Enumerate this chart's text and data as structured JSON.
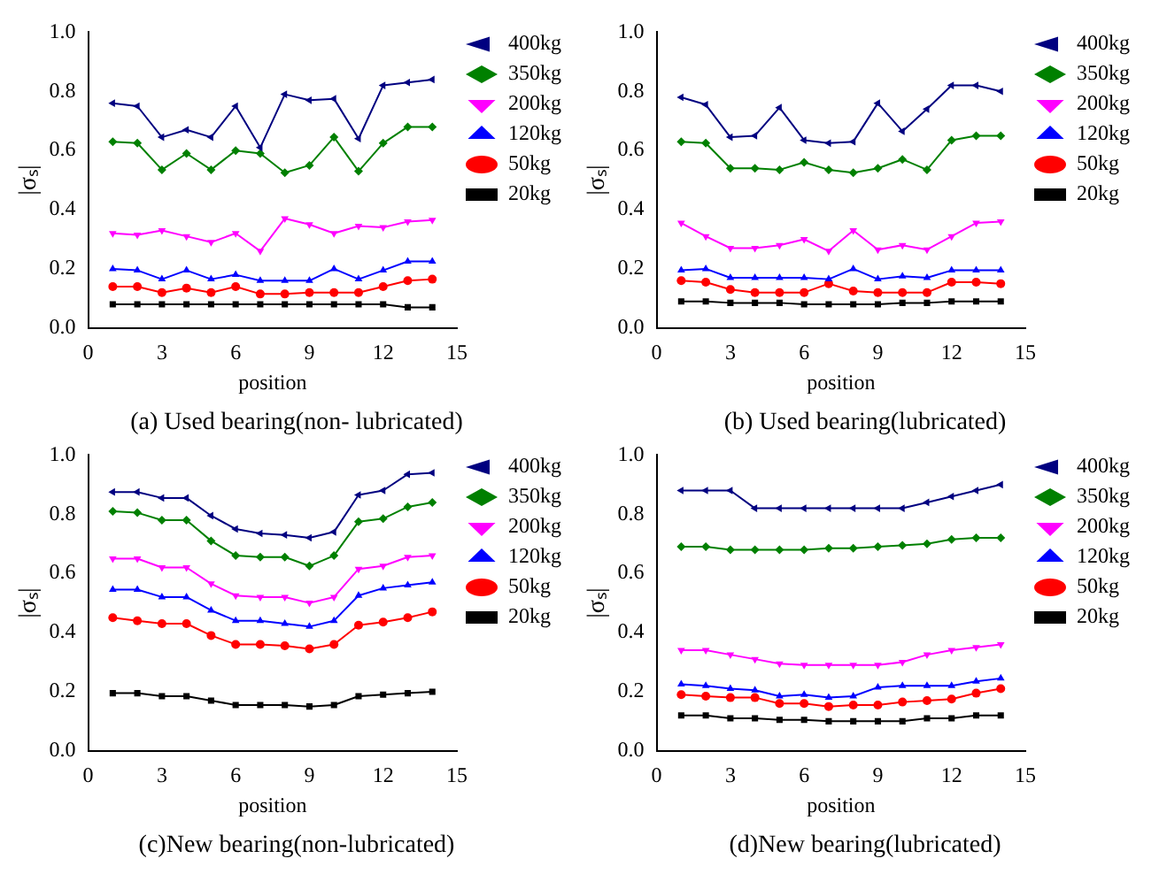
{
  "chart_data": [
    {
      "type": "line",
      "title": "(a) Used bearing(non- lubricated)",
      "xlabel": "position",
      "ylabel": "|σₛ|",
      "x": [
        1,
        2,
        3,
        4,
        5,
        6,
        7,
        8,
        9,
        10,
        11,
        12,
        13,
        14
      ],
      "xlim": [
        0,
        15
      ],
      "xticks": [
        0,
        3,
        6,
        9,
        12,
        15
      ],
      "ylim": [
        0,
        1
      ],
      "yticks": [
        {
          "value": 0,
          "label": "0.0"
        },
        {
          "value": 0.2,
          "label": "0.2"
        },
        {
          "value": 0.4,
          "label": "0.4"
        },
        {
          "value": 0.6,
          "label": "0.6"
        },
        {
          "value": 0.8,
          "label": "0.8"
        },
        {
          "value": 1,
          "label": "1.0"
        }
      ],
      "grid": false,
      "legend": "top right",
      "line_style": "solid",
      "series": [
        {
          "name": "20kg",
          "color": "#000000",
          "marker": "square",
          "values": [
            0.08,
            0.08,
            0.08,
            0.08,
            0.08,
            0.08,
            0.08,
            0.08,
            0.08,
            0.08,
            0.08,
            0.08,
            0.07,
            0.07
          ]
        },
        {
          "name": "50kg",
          "color": "#ff0000",
          "marker": "circle",
          "values": [
            0.14,
            0.14,
            0.12,
            0.135,
            0.12,
            0.14,
            0.115,
            0.115,
            0.12,
            0.12,
            0.12,
            0.14,
            0.16,
            0.165
          ]
        },
        {
          "name": "120kg",
          "color": "#0000ff",
          "marker": "triangle",
          "values": [
            0.2,
            0.195,
            0.165,
            0.195,
            0.165,
            0.18,
            0.16,
            0.16,
            0.16,
            0.2,
            0.165,
            0.195,
            0.225,
            0.225
          ]
        },
        {
          "name": "200kg",
          "color": "#ff00ff",
          "marker": "triangle-down",
          "values": [
            0.32,
            0.315,
            0.33,
            0.31,
            0.29,
            0.32,
            0.26,
            0.37,
            0.35,
            0.32,
            0.345,
            0.34,
            0.36,
            0.365
          ]
        },
        {
          "name": "350kg",
          "color": "#008000",
          "marker": "diamond",
          "values": [
            0.63,
            0.625,
            0.535,
            0.59,
            0.535,
            0.6,
            0.59,
            0.525,
            0.55,
            0.645,
            0.53,
            0.625,
            0.68,
            0.68
          ]
        },
        {
          "name": "400kg",
          "color": "#000080",
          "marker": "triangle-left",
          "values": [
            0.76,
            0.75,
            0.645,
            0.67,
            0.645,
            0.75,
            0.61,
            0.79,
            0.77,
            0.775,
            0.64,
            0.82,
            0.83,
            0.84
          ]
        }
      ]
    },
    {
      "type": "line",
      "title": "(b) Used bearing(lubricated)",
      "xlabel": "position",
      "ylabel": "|σₛ|",
      "x": [
        1,
        2,
        3,
        4,
        5,
        6,
        7,
        8,
        9,
        10,
        11,
        12,
        13,
        14
      ],
      "xlim": [
        0,
        15
      ],
      "xticks": [
        0,
        3,
        6,
        9,
        12,
        15
      ],
      "ylim": [
        0,
        1
      ],
      "yticks": [
        {
          "value": 0,
          "label": "0.0"
        },
        {
          "value": 0.2,
          "label": "0.2"
        },
        {
          "value": 0.4,
          "label": "0.4"
        },
        {
          "value": 0.6,
          "label": "0.6"
        },
        {
          "value": 0.8,
          "label": "0.8"
        },
        {
          "value": 1,
          "label": "1.0"
        }
      ],
      "grid": false,
      "legend": "top right",
      "line_style": "solid",
      "series": [
        {
          "name": "20kg",
          "color": "#000000",
          "marker": "square",
          "values": [
            0.09,
            0.09,
            0.085,
            0.085,
            0.085,
            0.08,
            0.08,
            0.08,
            0.08,
            0.085,
            0.085,
            0.09,
            0.09,
            0.09
          ]
        },
        {
          "name": "50kg",
          "color": "#ff0000",
          "marker": "circle",
          "values": [
            0.16,
            0.155,
            0.13,
            0.12,
            0.12,
            0.12,
            0.15,
            0.125,
            0.12,
            0.12,
            0.12,
            0.155,
            0.155,
            0.15
          ]
        },
        {
          "name": "120kg",
          "color": "#0000ff",
          "marker": "triangle",
          "values": [
            0.195,
            0.2,
            0.17,
            0.17,
            0.17,
            0.17,
            0.165,
            0.2,
            0.165,
            0.175,
            0.17,
            0.195,
            0.195,
            0.195
          ]
        },
        {
          "name": "200kg",
          "color": "#ff00ff",
          "marker": "triangle-down",
          "values": [
            0.355,
            0.31,
            0.27,
            0.27,
            0.28,
            0.3,
            0.26,
            0.33,
            0.265,
            0.28,
            0.265,
            0.31,
            0.355,
            0.36
          ]
        },
        {
          "name": "350kg",
          "color": "#008000",
          "marker": "diamond",
          "values": [
            0.63,
            0.625,
            0.54,
            0.54,
            0.535,
            0.56,
            0.535,
            0.525,
            0.54,
            0.57,
            0.535,
            0.635,
            0.65,
            0.65
          ]
        },
        {
          "name": "400kg",
          "color": "#000080",
          "marker": "triangle-left",
          "values": [
            0.78,
            0.755,
            0.645,
            0.65,
            0.745,
            0.635,
            0.625,
            0.63,
            0.76,
            0.665,
            0.74,
            0.82,
            0.82,
            0.8
          ]
        }
      ]
    },
    {
      "type": "line",
      "title": "(c)New bearing(non-lubricated)",
      "xlabel": "position",
      "ylabel": "|σₛ|",
      "x": [
        1,
        2,
        3,
        4,
        5,
        6,
        7,
        8,
        9,
        10,
        11,
        12,
        13,
        14
      ],
      "xlim": [
        0,
        15
      ],
      "xticks": [
        0,
        3,
        6,
        9,
        12,
        15
      ],
      "ylim": [
        0,
        1
      ],
      "yticks": [
        {
          "value": 0,
          "label": "0.0"
        },
        {
          "value": 0.2,
          "label": "0.2"
        },
        {
          "value": 0.4,
          "label": "0.4"
        },
        {
          "value": 0.6,
          "label": "0.6"
        },
        {
          "value": 0.8,
          "label": "0.8"
        },
        {
          "value": 1,
          "label": "1.0"
        }
      ],
      "grid": false,
      "legend": "top right",
      "line_style": "solid",
      "series": [
        {
          "name": "20kg",
          "color": "#000000",
          "marker": "square",
          "values": [
            0.195,
            0.195,
            0.185,
            0.185,
            0.17,
            0.155,
            0.155,
            0.155,
            0.15,
            0.155,
            0.185,
            0.19,
            0.195,
            0.2
          ]
        },
        {
          "name": "50kg",
          "color": "#ff0000",
          "marker": "circle",
          "values": [
            0.45,
            0.44,
            0.43,
            0.43,
            0.39,
            0.36,
            0.36,
            0.355,
            0.345,
            0.36,
            0.425,
            0.435,
            0.45,
            0.47
          ]
        },
        {
          "name": "120kg",
          "color": "#0000ff",
          "marker": "triangle",
          "values": [
            0.545,
            0.545,
            0.52,
            0.52,
            0.475,
            0.44,
            0.44,
            0.43,
            0.42,
            0.44,
            0.525,
            0.55,
            0.56,
            0.57
          ]
        },
        {
          "name": "200kg",
          "color": "#ff00ff",
          "marker": "triangle-down",
          "values": [
            0.65,
            0.65,
            0.62,
            0.62,
            0.565,
            0.525,
            0.52,
            0.52,
            0.5,
            0.52,
            0.615,
            0.625,
            0.655,
            0.66
          ]
        },
        {
          "name": "350kg",
          "color": "#008000",
          "marker": "diamond",
          "values": [
            0.81,
            0.805,
            0.78,
            0.78,
            0.71,
            0.66,
            0.655,
            0.655,
            0.625,
            0.66,
            0.775,
            0.785,
            0.825,
            0.84
          ]
        },
        {
          "name": "400kg",
          "color": "#000080",
          "marker": "triangle-left",
          "values": [
            0.875,
            0.875,
            0.855,
            0.855,
            0.795,
            0.75,
            0.735,
            0.73,
            0.72,
            0.74,
            0.865,
            0.88,
            0.935,
            0.94
          ]
        }
      ]
    },
    {
      "type": "line",
      "title": "(d)New bearing(lubricated)",
      "xlabel": "position",
      "ylabel": "|σₛ|",
      "x": [
        1,
        2,
        3,
        4,
        5,
        6,
        7,
        8,
        9,
        10,
        11,
        12,
        13,
        14
      ],
      "xlim": [
        0,
        15
      ],
      "xticks": [
        0,
        3,
        6,
        9,
        12,
        15
      ],
      "ylim": [
        0,
        1
      ],
      "yticks": [
        {
          "value": 0,
          "label": "0.0"
        },
        {
          "value": 0.2,
          "label": "0.2"
        },
        {
          "value": 0.4,
          "label": "0.4"
        },
        {
          "value": 0.6,
          "label": "0.6"
        },
        {
          "value": 0.8,
          "label": "0.8"
        },
        {
          "value": 1,
          "label": "1.0"
        }
      ],
      "grid": false,
      "legend": "top right",
      "line_style": "solid",
      "series": [
        {
          "name": "20kg",
          "color": "#000000",
          "marker": "square",
          "values": [
            0.12,
            0.12,
            0.11,
            0.11,
            0.105,
            0.105,
            0.1,
            0.1,
            0.1,
            0.1,
            0.11,
            0.11,
            0.12,
            0.12
          ]
        },
        {
          "name": "50kg",
          "color": "#ff0000",
          "marker": "circle",
          "values": [
            0.19,
            0.185,
            0.18,
            0.18,
            0.16,
            0.16,
            0.15,
            0.155,
            0.155,
            0.165,
            0.17,
            0.175,
            0.195,
            0.21
          ]
        },
        {
          "name": "120kg",
          "color": "#0000ff",
          "marker": "triangle",
          "values": [
            0.225,
            0.22,
            0.21,
            0.205,
            0.185,
            0.19,
            0.18,
            0.185,
            0.215,
            0.22,
            0.22,
            0.22,
            0.235,
            0.245
          ]
        },
        {
          "name": "200kg",
          "color": "#ff00ff",
          "marker": "triangle-down",
          "values": [
            0.34,
            0.34,
            0.325,
            0.31,
            0.295,
            0.29,
            0.29,
            0.29,
            0.29,
            0.3,
            0.325,
            0.34,
            0.35,
            0.36
          ]
        },
        {
          "name": "350kg",
          "color": "#008000",
          "marker": "diamond",
          "values": [
            0.69,
            0.69,
            0.68,
            0.68,
            0.68,
            0.68,
            0.685,
            0.685,
            0.69,
            0.695,
            0.7,
            0.715,
            0.72,
            0.72
          ]
        },
        {
          "name": "400kg",
          "color": "#000080",
          "marker": "triangle-left",
          "values": [
            0.88,
            0.88,
            0.88,
            0.82,
            0.82,
            0.82,
            0.82,
            0.82,
            0.82,
            0.82,
            0.84,
            0.86,
            0.88,
            0.9
          ]
        }
      ]
    }
  ]
}
